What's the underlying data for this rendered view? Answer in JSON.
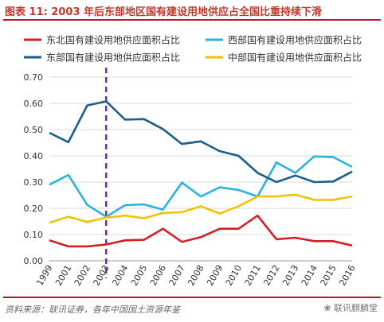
{
  "title": "图表 11: 2003 年后东部地区国有建设用地供应占全国比重持续下滑",
  "source": "资料来源：联讯证券，各年中国国土资源年鉴",
  "watermark": "联讯麒麟堂",
  "chart_data": {
    "type": "line",
    "categories": [
      "1999",
      "2001",
      "2002",
      "2003",
      "2004",
      "2005",
      "2006",
      "2007",
      "2008",
      "2009",
      "2010",
      "2011",
      "2012",
      "2013",
      "2014",
      "2015",
      "2016"
    ],
    "ylim": [
      0,
      0.7
    ],
    "yticks": [
      "0.00",
      "0.10",
      "0.20",
      "0.30",
      "0.40",
      "0.50",
      "0.60",
      "0.70"
    ],
    "grid": true,
    "legend_position": "top",
    "marker_line_category": "2003",
    "series": [
      {
        "name": "东北国有建设用地供应面积占比",
        "color": "#d32027",
        "values": [
          0.078,
          0.055,
          0.055,
          0.062,
          0.078,
          0.08,
          0.122,
          0.072,
          0.09,
          0.122,
          0.122,
          0.172,
          0.082,
          0.088,
          0.075,
          0.075,
          0.058
        ]
      },
      {
        "name": "西部国有建设用地供应面积占比",
        "color": "#29b3df",
        "values": [
          0.29,
          0.327,
          0.213,
          0.168,
          0.212,
          0.215,
          0.195,
          0.298,
          0.245,
          0.28,
          0.27,
          0.245,
          0.375,
          0.335,
          0.398,
          0.395,
          0.358
        ]
      },
      {
        "name": "东部国有建设用地供应面积占比",
        "color": "#1b5e8c",
        "values": [
          0.488,
          0.452,
          0.592,
          0.608,
          0.538,
          0.54,
          0.502,
          0.445,
          0.455,
          0.418,
          0.4,
          0.335,
          0.3,
          0.325,
          0.3,
          0.302,
          0.34
        ]
      },
      {
        "name": "中部国有建设用地供应面积占比",
        "color": "#f2c200",
        "values": [
          0.145,
          0.168,
          0.148,
          0.165,
          0.172,
          0.162,
          0.182,
          0.185,
          0.208,
          0.18,
          0.208,
          0.245,
          0.245,
          0.252,
          0.232,
          0.232,
          0.245
        ]
      }
    ]
  }
}
